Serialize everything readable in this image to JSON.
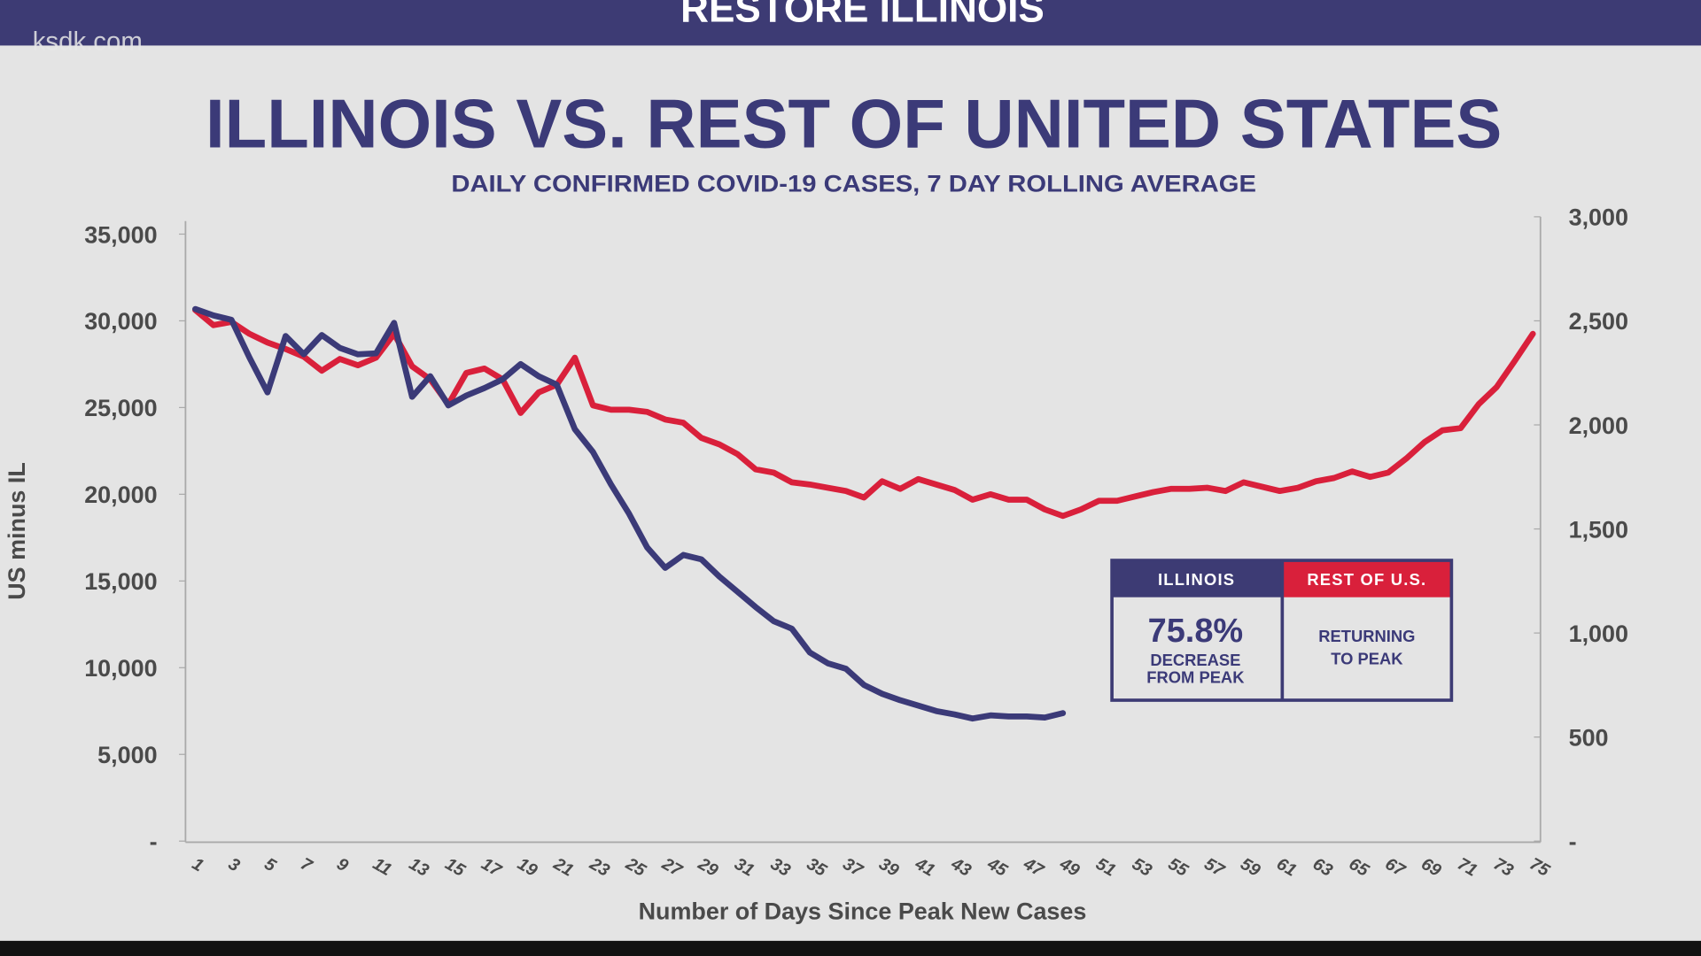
{
  "banner": {
    "title": "RESTORE ILLINOIS",
    "watermark": "ksdk.com"
  },
  "colors": {
    "banner": "#3d3b74",
    "illinois": "#3b3a78",
    "rest_of_us": "#d9203b",
    "background": "#e4e4e4",
    "axis_text": "#4a4a4a"
  },
  "callout": {
    "illinois_header": "ILLINOIS",
    "illinois_value": "75.8%",
    "illinois_line1": "DECREASE",
    "illinois_line2": "FROM PEAK",
    "us_header": "REST OF U.S.",
    "us_line1": "RETURNING",
    "us_line2": "TO PEAK"
  },
  "chart_data": {
    "type": "line",
    "title": "ILLINOIS VS. REST OF UNITED STATES",
    "subtitle": "DAILY CONFIRMED COVID-19 CASES, 7 DAY ROLLING AVERAGE",
    "xlabel": "Number of Days Since Peak New Cases",
    "ylabel": "US minus IL",
    "xlim": [
      1,
      75
    ],
    "x_tick_labels": [
      "1",
      "3",
      "5",
      "7",
      "9",
      "11",
      "13",
      "15",
      "17",
      "19",
      "21",
      "23",
      "25",
      "27",
      "29",
      "31",
      "33",
      "35",
      "37",
      "39",
      "41",
      "43",
      "45",
      "47",
      "49",
      "51",
      "53",
      "55",
      "57",
      "59",
      "61",
      "63",
      "65",
      "67",
      "69",
      "71",
      "73",
      "75"
    ],
    "ylim_left": [
      0,
      35000
    ],
    "y_left_tick_labels": [
      "-",
      "5,000",
      "10,000",
      "15,000",
      "20,000",
      "25,000",
      "30,000",
      "35,000"
    ],
    "ylim_right": [
      0,
      3000
    ],
    "y_right_tick_labels": [
      "-",
      "500",
      "1,000",
      "1,500",
      "2,000",
      "2,500",
      "3,000"
    ],
    "grid": false,
    "series": [
      {
        "name": "REST OF U.S.",
        "axis": "left",
        "start_day": 1,
        "values": [
          30625,
          29750,
          29940,
          29250,
          28750,
          28375,
          27940,
          27125,
          27800,
          27440,
          27875,
          29250,
          27375,
          26625,
          25190,
          27000,
          27250,
          26625,
          24690,
          25875,
          26310,
          27875,
          25125,
          24875,
          24875,
          24750,
          24310,
          24125,
          23250,
          22875,
          22310,
          21440,
          21250,
          20690,
          20560,
          20375,
          20190,
          19810,
          20750,
          20310,
          20875,
          20560,
          20250,
          19690,
          20000,
          19690,
          19690,
          19125,
          18750,
          19125,
          19625,
          19625,
          19875,
          20125,
          20310,
          20310,
          20375,
          20190,
          20690,
          20440,
          20190,
          20375,
          20750,
          20940,
          21310,
          21000,
          21250,
          22060,
          23000,
          23690,
          23810,
          25190,
          26190,
          27690,
          29250
        ]
      },
      {
        "name": "ILLINOIS",
        "axis": "right",
        "start_day": 1,
        "values": [
          2557,
          2526,
          2505,
          2323,
          2156,
          2427,
          2339,
          2432,
          2370,
          2339,
          2344,
          2490,
          2135,
          2234,
          2094,
          2141,
          2177,
          2219,
          2292,
          2234,
          2193,
          1979,
          1870,
          1714,
          1573,
          1411,
          1313,
          1375,
          1354,
          1271,
          1198,
          1125,
          1057,
          1021,
          906,
          854,
          828,
          750,
          708,
          677,
          651,
          625,
          609,
          589,
          604,
          599,
          599,
          594,
          615
        ]
      }
    ]
  }
}
